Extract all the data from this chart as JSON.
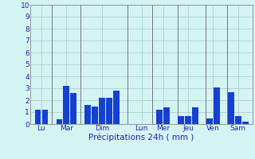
{
  "bar_data": [
    {
      "x": 1,
      "height": 1.2
    },
    {
      "x": 2,
      "height": 1.2
    },
    {
      "x": 4,
      "height": 0.4
    },
    {
      "x": 5,
      "height": 3.2
    },
    {
      "x": 6,
      "height": 2.6
    },
    {
      "x": 8,
      "height": 1.6
    },
    {
      "x": 9,
      "height": 1.5
    },
    {
      "x": 10,
      "height": 2.2
    },
    {
      "x": 11,
      "height": 2.2
    },
    {
      "x": 12,
      "height": 2.8
    },
    {
      "x": 18,
      "height": 1.2
    },
    {
      "x": 19,
      "height": 1.4
    },
    {
      "x": 21,
      "height": 0.7
    },
    {
      "x": 22,
      "height": 0.7
    },
    {
      "x": 23,
      "height": 1.4
    },
    {
      "x": 25,
      "height": 0.5
    },
    {
      "x": 26,
      "height": 3.1
    },
    {
      "x": 28,
      "height": 2.7
    },
    {
      "x": 29,
      "height": 0.7
    },
    {
      "x": 30,
      "height": 0.2
    }
  ],
  "day_separators": [
    3.0,
    7.0,
    13.5,
    17.0,
    20.5,
    24.5,
    27.5
  ],
  "tick_positions": [
    1.5,
    5.0,
    10.0,
    15.5,
    18.5,
    22.0,
    25.5,
    29.0
  ],
  "tick_labels": [
    "Lu",
    "Mar",
    "Dim",
    "Lun",
    "Mer",
    "Jeu",
    "Ven",
    "Sam"
  ],
  "ylabel_ticks": [
    0,
    1,
    2,
    3,
    4,
    5,
    6,
    7,
    8,
    9,
    10
  ],
  "xlabel": "Précipitations 24h ( mm )",
  "xlim": [
    0,
    31
  ],
  "ylim": [
    0,
    10
  ],
  "bar_color": "#1540d0",
  "bg_color": "#d4f4f4",
  "grid_color": "#a8c8c8",
  "sep_color": "#707878",
  "bar_width": 0.85,
  "xlabel_fontsize": 7.5,
  "tick_fontsize": 6.5,
  "ytick_fontsize": 6.5,
  "tick_color": "#2222aa"
}
